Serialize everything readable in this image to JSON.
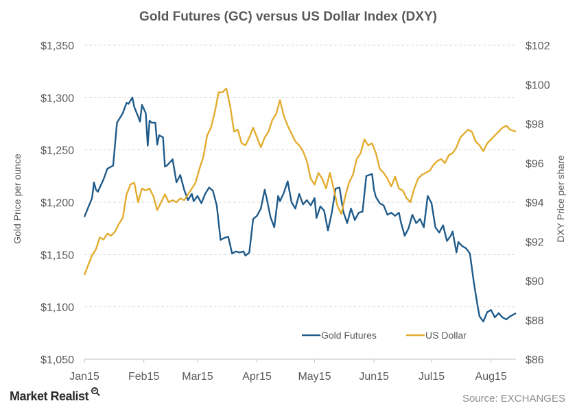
{
  "chart_data": {
    "type": "line",
    "title": "Gold  Futures  (GC)  versus  US  Dollar  Index  (DXY)",
    "ylabel_left": "Gold Price per ounce",
    "ylabel_right": "DXY Price per share",
    "xlabel": "",
    "x_ticks": [
      "Jan15",
      "Feb15",
      "Mar15",
      "Apr15",
      "May15",
      "Jun15",
      "Jul15",
      "Aug15"
    ],
    "x_range": [
      "2015-01-01",
      "2015-08-14"
    ],
    "y_left_ticks": [
      "$1,050",
      "$1,100",
      "$1,150",
      "$1,200",
      "$1,250",
      "$1,300",
      "$1,350"
    ],
    "y_right_ticks": [
      "$86",
      "$88",
      "$90",
      "$92",
      "$94",
      "$96",
      "$98",
      "$100",
      "$102"
    ],
    "ylim_left": [
      1050,
      1350
    ],
    "ylim_right": [
      86,
      102
    ],
    "grid": true,
    "legend_position": "bottom-right",
    "series": [
      {
        "name": "Gold Futures",
        "axis": "left",
        "color": "#1f5b8a",
        "points": [
          [
            "2015-01-01",
            1186
          ],
          [
            "2015-01-03",
            1195
          ],
          [
            "2015-01-05",
            1204
          ],
          [
            "2015-01-06",
            1219
          ],
          [
            "2015-01-07",
            1212
          ],
          [
            "2015-01-08",
            1210
          ],
          [
            "2015-01-11",
            1222
          ],
          [
            "2015-01-13",
            1232
          ],
          [
            "2015-01-15",
            1234
          ],
          [
            "2015-01-16",
            1235
          ],
          [
            "2015-01-18",
            1276
          ],
          [
            "2015-01-21",
            1285
          ],
          [
            "2015-01-23",
            1295
          ],
          [
            "2015-01-24",
            1294
          ],
          [
            "2015-01-26",
            1300
          ],
          [
            "2015-01-27",
            1291
          ],
          [
            "2015-01-29",
            1282
          ],
          [
            "2015-01-30",
            1277
          ],
          [
            "2015-01-31",
            1293
          ],
          [
            "2015-02-02",
            1285
          ],
          [
            "2015-02-03",
            1254
          ],
          [
            "2015-02-04",
            1278
          ],
          [
            "2015-02-05",
            1276
          ],
          [
            "2015-02-07",
            1276
          ],
          [
            "2015-02-08",
            1255
          ],
          [
            "2015-02-09",
            1264
          ],
          [
            "2015-02-11",
            1262
          ],
          [
            "2015-02-12",
            1234
          ],
          [
            "2015-02-13",
            1235
          ],
          [
            "2015-02-15",
            1239
          ],
          [
            "2015-02-16",
            1241
          ],
          [
            "2015-02-18",
            1219
          ],
          [
            "2015-02-20",
            1226
          ],
          [
            "2015-02-22",
            1212
          ],
          [
            "2015-02-24",
            1202
          ],
          [
            "2015-02-26",
            1208
          ],
          [
            "2015-02-27",
            1201
          ],
          [
            "2015-03-01",
            1206
          ],
          [
            "2015-03-03",
            1199
          ],
          [
            "2015-03-05",
            1208
          ],
          [
            "2015-03-07",
            1214
          ],
          [
            "2015-03-09",
            1211
          ],
          [
            "2015-03-11",
            1197
          ],
          [
            "2015-03-13",
            1164
          ],
          [
            "2015-03-15",
            1166
          ],
          [
            "2015-03-17",
            1167
          ],
          [
            "2015-03-19",
            1151
          ],
          [
            "2015-03-21",
            1153
          ],
          [
            "2015-03-23",
            1152
          ],
          [
            "2015-03-25",
            1153
          ],
          [
            "2015-03-26",
            1149
          ],
          [
            "2015-03-28",
            1152
          ],
          [
            "2015-03-30",
            1184
          ],
          [
            "2015-04-01",
            1187
          ],
          [
            "2015-04-03",
            1194
          ],
          [
            "2015-04-05",
            1212
          ],
          [
            "2015-04-06",
            1204
          ],
          [
            "2015-04-08",
            1186
          ],
          [
            "2015-04-10",
            1176
          ],
          [
            "2015-04-12",
            1206
          ],
          [
            "2015-04-13",
            1201
          ],
          [
            "2015-04-15",
            1209
          ],
          [
            "2015-04-17",
            1220
          ],
          [
            "2015-04-19",
            1200
          ],
          [
            "2015-04-21",
            1194
          ],
          [
            "2015-04-23",
            1208
          ],
          [
            "2015-04-25",
            1198
          ],
          [
            "2015-04-27",
            1202
          ],
          [
            "2015-04-29",
            1197
          ],
          [
            "2015-05-01",
            1204
          ],
          [
            "2015-05-02",
            1185
          ],
          [
            "2015-05-04",
            1196
          ],
          [
            "2015-05-06",
            1192
          ],
          [
            "2015-05-08",
            1173
          ],
          [
            "2015-05-10",
            1190
          ],
          [
            "2015-05-12",
            1213
          ],
          [
            "2015-05-14",
            1214
          ],
          [
            "2015-05-16",
            1191
          ],
          [
            "2015-05-18",
            1180
          ],
          [
            "2015-05-20",
            1194
          ],
          [
            "2015-05-22",
            1183
          ],
          [
            "2015-05-24",
            1190
          ],
          [
            "2015-05-26",
            1191
          ],
          [
            "2015-05-28",
            1225
          ],
          [
            "2015-05-31",
            1227
          ],
          [
            "2015-06-01",
            1212
          ],
          [
            "2015-06-02",
            1205
          ],
          [
            "2015-06-04",
            1199
          ],
          [
            "2015-06-06",
            1197
          ],
          [
            "2015-06-08",
            1188
          ],
          [
            "2015-06-10",
            1190
          ],
          [
            "2015-06-12",
            1187
          ],
          [
            "2015-06-14",
            1190
          ],
          [
            "2015-06-15",
            1181
          ],
          [
            "2015-06-17",
            1168
          ],
          [
            "2015-06-19",
            1175
          ],
          [
            "2015-06-21",
            1188
          ],
          [
            "2015-06-23",
            1180
          ],
          [
            "2015-06-25",
            1184
          ],
          [
            "2015-06-27",
            1176
          ],
          [
            "2015-06-29",
            1206
          ],
          [
            "2015-07-01",
            1199
          ],
          [
            "2015-07-03",
            1176
          ],
          [
            "2015-07-05",
            1171
          ],
          [
            "2015-07-07",
            1178
          ],
          [
            "2015-07-09",
            1163
          ],
          [
            "2015-07-11",
            1168
          ],
          [
            "2015-07-12",
            1172
          ],
          [
            "2015-07-14",
            1152
          ],
          [
            "2015-07-15",
            1162
          ],
          [
            "2015-07-17",
            1158
          ],
          [
            "2015-07-19",
            1156
          ],
          [
            "2015-07-21",
            1151
          ],
          [
            "2015-07-23",
            1124
          ],
          [
            "2015-07-25",
            1101
          ],
          [
            "2015-07-26",
            1091
          ],
          [
            "2015-07-28",
            1086
          ],
          [
            "2015-07-30",
            1095
          ],
          [
            "2015-08-01",
            1097
          ],
          [
            "2015-08-03",
            1090
          ],
          [
            "2015-08-05",
            1094
          ],
          [
            "2015-08-07",
            1090
          ],
          [
            "2015-08-09",
            1088
          ],
          [
            "2015-08-11",
            1091
          ],
          [
            "2015-08-14",
            1094
          ]
        ]
      },
      {
        "name": "US Dollar",
        "axis": "right",
        "color": "#e2ac2e",
        "points": [
          [
            "2015-01-01",
            90.3
          ],
          [
            "2015-01-03",
            90.8
          ],
          [
            "2015-01-05",
            91.3
          ],
          [
            "2015-01-07",
            91.6
          ],
          [
            "2015-01-09",
            92.2
          ],
          [
            "2015-01-11",
            92.1
          ],
          [
            "2015-01-13",
            92.4
          ],
          [
            "2015-01-15",
            92.3
          ],
          [
            "2015-01-17",
            92.5
          ],
          [
            "2015-01-19",
            92.9
          ],
          [
            "2015-01-21",
            93.2
          ],
          [
            "2015-01-23",
            94.4
          ],
          [
            "2015-01-25",
            94.9
          ],
          [
            "2015-01-27",
            95.0
          ],
          [
            "2015-01-29",
            94.0
          ],
          [
            "2015-01-31",
            94.7
          ],
          [
            "2015-02-02",
            94.6
          ],
          [
            "2015-02-04",
            94.7
          ],
          [
            "2015-02-06",
            94.3
          ],
          [
            "2015-02-08",
            93.6
          ],
          [
            "2015-02-10",
            94.0
          ],
          [
            "2015-02-12",
            94.4
          ],
          [
            "2015-02-14",
            94.0
          ],
          [
            "2015-02-16",
            94.1
          ],
          [
            "2015-02-18",
            94.0
          ],
          [
            "2015-02-20",
            94.2
          ],
          [
            "2015-02-22",
            94.1
          ],
          [
            "2015-02-24",
            94.4
          ],
          [
            "2015-02-26",
            94.7
          ],
          [
            "2015-02-28",
            95.0
          ],
          [
            "2015-03-02",
            95.7
          ],
          [
            "2015-03-04",
            96.3
          ],
          [
            "2015-03-06",
            97.4
          ],
          [
            "2015-03-08",
            97.8
          ],
          [
            "2015-03-10",
            98.6
          ],
          [
            "2015-03-12",
            99.6
          ],
          [
            "2015-03-14",
            99.6
          ],
          [
            "2015-03-16",
            99.8
          ],
          [
            "2015-03-18",
            98.9
          ],
          [
            "2015-03-20",
            97.6
          ],
          [
            "2015-03-22",
            97.7
          ],
          [
            "2015-03-24",
            97.0
          ],
          [
            "2015-03-26",
            96.9
          ],
          [
            "2015-03-28",
            97.3
          ],
          [
            "2015-03-30",
            97.8
          ],
          [
            "2015-04-01",
            97.3
          ],
          [
            "2015-04-03",
            96.8
          ],
          [
            "2015-04-05",
            97.3
          ],
          [
            "2015-04-07",
            97.6
          ],
          [
            "2015-04-09",
            98.2
          ],
          [
            "2015-04-11",
            98.5
          ],
          [
            "2015-04-13",
            99.2
          ],
          [
            "2015-04-15",
            98.4
          ],
          [
            "2015-04-17",
            97.9
          ],
          [
            "2015-04-19",
            97.5
          ],
          [
            "2015-04-21",
            97.1
          ],
          [
            "2015-04-23",
            96.9
          ],
          [
            "2015-04-25",
            96.6
          ],
          [
            "2015-04-27",
            96.1
          ],
          [
            "2015-04-29",
            95.2
          ],
          [
            "2015-05-01",
            94.9
          ],
          [
            "2015-05-03",
            95.5
          ],
          [
            "2015-05-05",
            95.2
          ],
          [
            "2015-05-07",
            94.7
          ],
          [
            "2015-05-09",
            95.5
          ],
          [
            "2015-05-11",
            94.7
          ],
          [
            "2015-05-13",
            93.8
          ],
          [
            "2015-05-15",
            93.4
          ],
          [
            "2015-05-17",
            94.3
          ],
          [
            "2015-05-19",
            95.0
          ],
          [
            "2015-05-21",
            95.4
          ],
          [
            "2015-05-23",
            96.2
          ],
          [
            "2015-05-25",
            96.5
          ],
          [
            "2015-05-27",
            97.2
          ],
          [
            "2015-05-29",
            96.9
          ],
          [
            "2015-05-31",
            97.0
          ],
          [
            "2015-06-02",
            96.5
          ],
          [
            "2015-06-04",
            95.7
          ],
          [
            "2015-06-06",
            95.5
          ],
          [
            "2015-06-08",
            95.2
          ],
          [
            "2015-06-10",
            94.8
          ],
          [
            "2015-06-12",
            95.3
          ],
          [
            "2015-06-14",
            94.7
          ],
          [
            "2015-06-16",
            94.6
          ],
          [
            "2015-06-18",
            94.2
          ],
          [
            "2015-06-20",
            94.0
          ],
          [
            "2015-06-22",
            94.7
          ],
          [
            "2015-06-24",
            95.2
          ],
          [
            "2015-06-26",
            95.4
          ],
          [
            "2015-06-28",
            95.5
          ],
          [
            "2015-06-30",
            95.6
          ],
          [
            "2015-07-02",
            95.9
          ],
          [
            "2015-07-04",
            96.1
          ],
          [
            "2015-07-06",
            96.2
          ],
          [
            "2015-07-08",
            96.0
          ],
          [
            "2015-07-10",
            96.4
          ],
          [
            "2015-07-12",
            96.5
          ],
          [
            "2015-07-14",
            96.8
          ],
          [
            "2015-07-16",
            97.3
          ],
          [
            "2015-07-18",
            97.5
          ],
          [
            "2015-07-20",
            97.7
          ],
          [
            "2015-07-22",
            97.6
          ],
          [
            "2015-07-24",
            97.1
          ],
          [
            "2015-07-26",
            96.9
          ],
          [
            "2015-07-28",
            96.6
          ],
          [
            "2015-07-30",
            97.0
          ],
          [
            "2015-08-01",
            97.2
          ],
          [
            "2015-08-03",
            97.4
          ],
          [
            "2015-08-05",
            97.6
          ],
          [
            "2015-08-07",
            97.8
          ],
          [
            "2015-08-09",
            97.9
          ],
          [
            "2015-08-11",
            97.7
          ],
          [
            "2015-08-14",
            97.6
          ]
        ]
      }
    ]
  },
  "footer": {
    "brand": "Market Realist",
    "source": "Source: EXCHANGES"
  }
}
